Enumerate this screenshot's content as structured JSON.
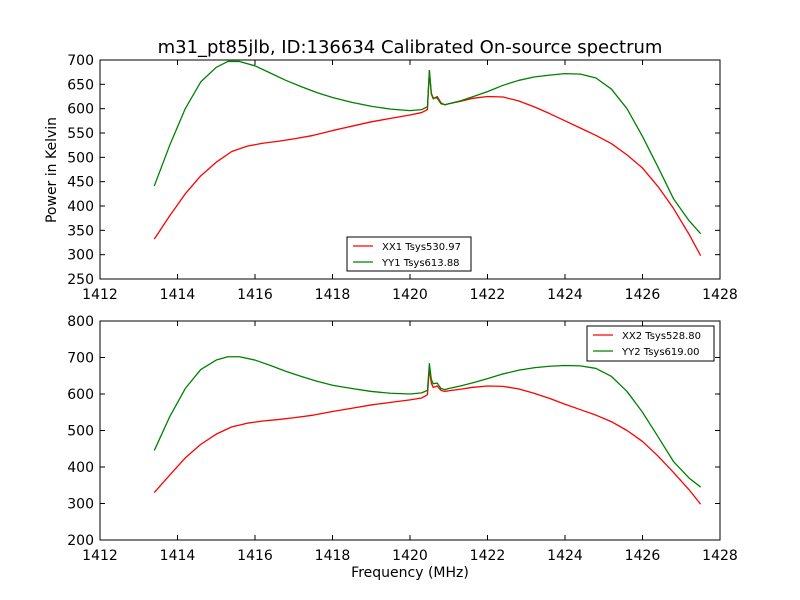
{
  "figure": {
    "title": "m31_pt85jlb, ID:136634 Calibrated On-source spectrum",
    "xlabel": "Frequency (MHz)",
    "ylabel": "Power in Kelvin"
  },
  "colors": {
    "xx": "#ff0000",
    "yy": "#008000"
  },
  "chart_data": [
    {
      "type": "line",
      "xlim": [
        1412,
        1428
      ],
      "ylim": [
        250,
        700
      ],
      "xticks": [
        1412,
        1414,
        1416,
        1418,
        1420,
        1422,
        1424,
        1426,
        1428
      ],
      "yticks": [
        250,
        300,
        350,
        400,
        450,
        500,
        550,
        600,
        650,
        700
      ],
      "xlabel": "",
      "ylabel": "Power in Kelvin",
      "legend": "bottom-center",
      "grid": false,
      "series": [
        {
          "name": "XX1 Tsys530.97",
          "color": "#ff0000",
          "x": [
            1413.4,
            1413.8,
            1414.2,
            1414.6,
            1415.0,
            1415.4,
            1415.8,
            1416.2,
            1416.6,
            1417.0,
            1417.5,
            1418.0,
            1418.5,
            1419.0,
            1419.5,
            1420.0,
            1420.3,
            1420.45,
            1420.5,
            1420.55,
            1420.6,
            1420.7,
            1420.8,
            1420.9,
            1421.0,
            1421.3,
            1421.6,
            1422.0,
            1422.4,
            1422.8,
            1423.2,
            1423.6,
            1424.0,
            1424.4,
            1424.8,
            1425.2,
            1425.6,
            1426.0,
            1426.4,
            1426.8,
            1427.2,
            1427.5
          ],
          "y": [
            332,
            380,
            425,
            462,
            490,
            512,
            523,
            529,
            533,
            538,
            545,
            555,
            564,
            573,
            580,
            587,
            592,
            598,
            678,
            630,
            620,
            625,
            612,
            608,
            610,
            615,
            621,
            625,
            624,
            616,
            604,
            590,
            575,
            560,
            545,
            528,
            505,
            478,
            440,
            395,
            342,
            298
          ]
        },
        {
          "name": "YY1 Tsys613.88",
          "color": "#008000",
          "x": [
            1413.4,
            1413.8,
            1414.2,
            1414.6,
            1415.0,
            1415.3,
            1415.6,
            1416.0,
            1416.4,
            1416.8,
            1417.2,
            1417.6,
            1418.0,
            1418.5,
            1419.0,
            1419.5,
            1420.0,
            1420.3,
            1420.45,
            1420.5,
            1420.55,
            1420.6,
            1420.7,
            1420.8,
            1420.9,
            1421.0,
            1421.3,
            1421.6,
            1422.0,
            1422.4,
            1422.8,
            1423.2,
            1423.6,
            1424.0,
            1424.4,
            1424.8,
            1425.2,
            1425.6,
            1426.0,
            1426.4,
            1426.8,
            1427.2,
            1427.5
          ],
          "y": [
            441,
            525,
            600,
            655,
            685,
            697,
            697,
            688,
            673,
            658,
            645,
            633,
            623,
            613,
            605,
            599,
            596,
            598,
            604,
            678,
            632,
            622,
            622,
            610,
            608,
            610,
            616,
            624,
            635,
            648,
            658,
            665,
            669,
            672,
            671,
            663,
            640,
            600,
            543,
            480,
            415,
            370,
            343
          ]
        }
      ]
    },
    {
      "type": "line",
      "xlim": [
        1412,
        1428
      ],
      "ylim": [
        200,
        800
      ],
      "xticks": [
        1412,
        1414,
        1416,
        1418,
        1420,
        1422,
        1424,
        1426,
        1428
      ],
      "yticks": [
        200,
        300,
        400,
        500,
        600,
        700,
        800
      ],
      "xlabel": "Frequency (MHz)",
      "ylabel": "",
      "legend": "top-right",
      "grid": false,
      "series": [
        {
          "name": "XX2 Tsys528.80",
          "color": "#ff0000",
          "x": [
            1413.4,
            1413.8,
            1414.2,
            1414.6,
            1415.0,
            1415.4,
            1415.8,
            1416.2,
            1416.6,
            1417.0,
            1417.5,
            1418.0,
            1418.5,
            1419.0,
            1419.5,
            1420.0,
            1420.3,
            1420.45,
            1420.5,
            1420.55,
            1420.6,
            1420.7,
            1420.8,
            1420.9,
            1421.0,
            1421.3,
            1421.6,
            1422.0,
            1422.4,
            1422.8,
            1423.2,
            1423.6,
            1424.0,
            1424.4,
            1424.8,
            1425.2,
            1425.6,
            1426.0,
            1426.4,
            1426.8,
            1427.2,
            1427.5
          ],
          "y": [
            330,
            378,
            425,
            462,
            490,
            510,
            520,
            526,
            530,
            535,
            542,
            552,
            561,
            570,
            577,
            584,
            589,
            598,
            670,
            630,
            618,
            622,
            610,
            607,
            609,
            613,
            618,
            622,
            621,
            614,
            602,
            588,
            572,
            557,
            542,
            524,
            500,
            470,
            430,
            385,
            338,
            298
          ]
        },
        {
          "name": "YY2 Tsys619.00",
          "color": "#008000",
          "x": [
            1413.4,
            1413.8,
            1414.2,
            1414.6,
            1415.0,
            1415.3,
            1415.6,
            1416.0,
            1416.4,
            1416.8,
            1417.2,
            1417.6,
            1418.0,
            1418.5,
            1419.0,
            1419.5,
            1420.0,
            1420.3,
            1420.45,
            1420.5,
            1420.55,
            1420.6,
            1420.7,
            1420.8,
            1420.9,
            1421.0,
            1421.3,
            1421.6,
            1422.0,
            1422.4,
            1422.8,
            1423.2,
            1423.6,
            1424.0,
            1424.4,
            1424.8,
            1425.2,
            1425.6,
            1426.0,
            1426.4,
            1426.8,
            1427.2,
            1427.5
          ],
          "y": [
            445,
            538,
            615,
            667,
            693,
            702,
            702,
            693,
            678,
            662,
            648,
            635,
            624,
            615,
            607,
            602,
            600,
            603,
            610,
            683,
            640,
            628,
            630,
            615,
            612,
            615,
            622,
            630,
            642,
            655,
            665,
            672,
            676,
            678,
            677,
            670,
            648,
            607,
            550,
            483,
            415,
            370,
            345
          ]
        }
      ]
    }
  ]
}
